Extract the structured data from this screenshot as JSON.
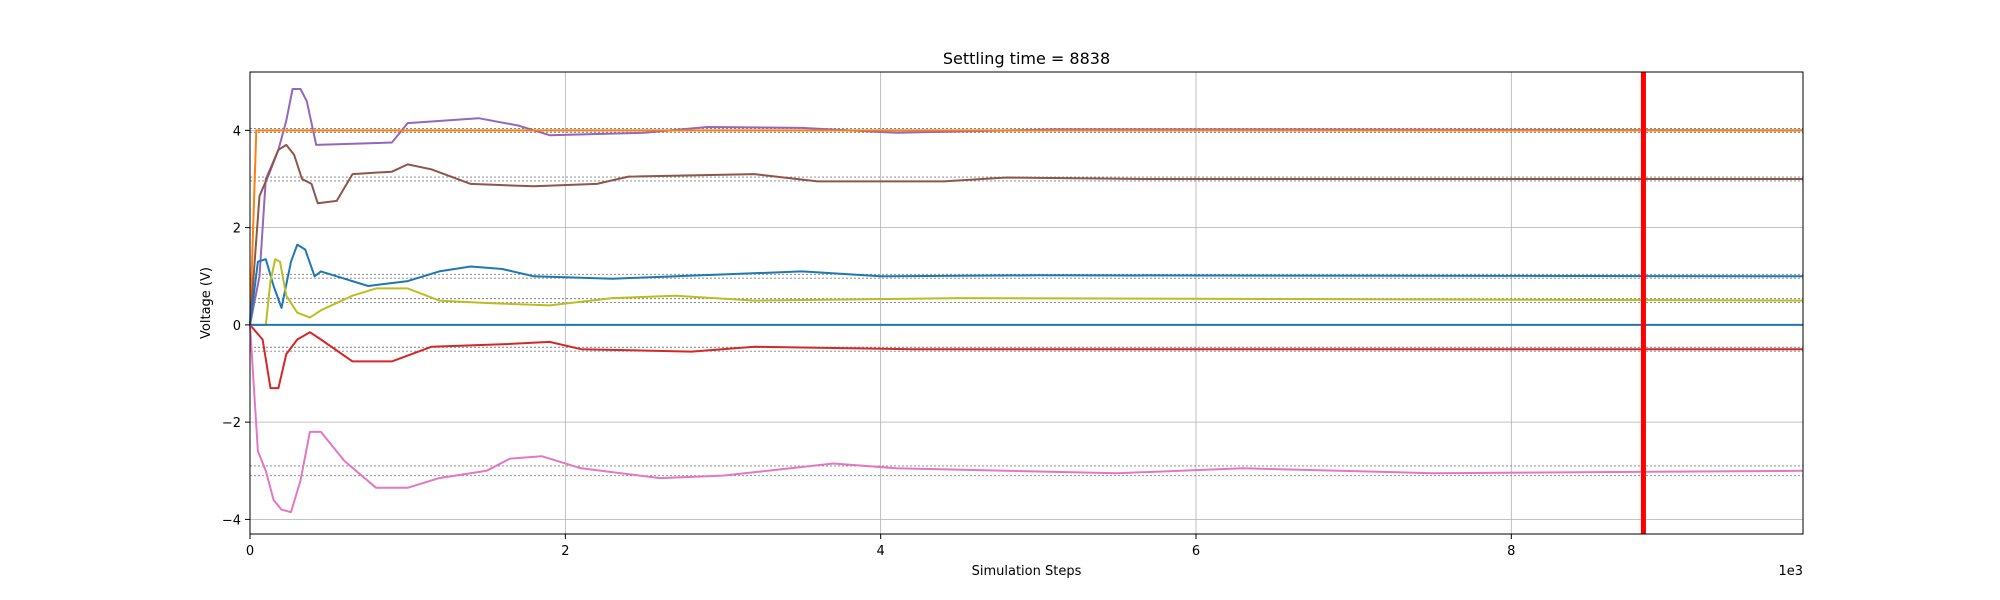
{
  "chart_data": {
    "type": "line",
    "title": "Settling time = 8838",
    "xlabel": "Simulation Steps",
    "ylabel": "Voltage (V)",
    "x_offset_text": "1e3",
    "xlim": [
      0,
      9850
    ],
    "ylim": [
      -4.3,
      5.2
    ],
    "x_scale_factor": 1000,
    "xticks": [
      0,
      2000,
      4000,
      6000,
      8000
    ],
    "yticks": [
      -4,
      -2,
      0,
      2,
      4
    ],
    "grid": true,
    "settling_marker": {
      "x": 8838,
      "color": "#ff0000"
    },
    "series": [
      {
        "color": "#9467bd",
        "target": 4.0,
        "band": 0.04,
        "points": [
          [
            0,
            0
          ],
          [
            60,
            1.0
          ],
          [
            100,
            3.0
          ],
          [
            180,
            3.6
          ],
          [
            230,
            4.2
          ],
          [
            270,
            4.85
          ],
          [
            320,
            4.85
          ],
          [
            360,
            4.6
          ],
          [
            420,
            3.7
          ],
          [
            900,
            3.75
          ],
          [
            1000,
            4.15
          ],
          [
            1450,
            4.25
          ],
          [
            1700,
            4.1
          ],
          [
            1900,
            3.9
          ],
          [
            2500,
            3.95
          ],
          [
            2900,
            4.07
          ],
          [
            3500,
            4.05
          ],
          [
            4100,
            3.95
          ],
          [
            5100,
            4.02
          ],
          [
            6500,
            4.02
          ],
          [
            9850,
            4.0
          ]
        ]
      },
      {
        "color": "#ff7f0e",
        "target": 4.0,
        "band": 0.04,
        "points": [
          [
            0,
            0
          ],
          [
            40,
            4.0
          ],
          [
            9850,
            4.0
          ]
        ]
      },
      {
        "color": "#8c564b",
        "target": 3.0,
        "band": 0.04,
        "points": [
          [
            0,
            0
          ],
          [
            60,
            2.65
          ],
          [
            120,
            3.1
          ],
          [
            180,
            3.6
          ],
          [
            230,
            3.7
          ],
          [
            280,
            3.5
          ],
          [
            330,
            3.0
          ],
          [
            390,
            2.9
          ],
          [
            430,
            2.5
          ],
          [
            550,
            2.55
          ],
          [
            650,
            3.1
          ],
          [
            900,
            3.15
          ],
          [
            1000,
            3.3
          ],
          [
            1150,
            3.2
          ],
          [
            1400,
            2.9
          ],
          [
            1800,
            2.85
          ],
          [
            2200,
            2.9
          ],
          [
            2400,
            3.05
          ],
          [
            3200,
            3.1
          ],
          [
            3600,
            2.95
          ],
          [
            4400,
            2.95
          ],
          [
            4800,
            3.03
          ],
          [
            5700,
            3.0
          ],
          [
            9850,
            3.0
          ]
        ]
      },
      {
        "color": "#1f77b4",
        "target": 1.0,
        "band": 0.04,
        "points": [
          [
            0,
            0
          ],
          [
            50,
            1.3
          ],
          [
            100,
            1.35
          ],
          [
            150,
            0.8
          ],
          [
            200,
            0.35
          ],
          [
            260,
            1.3
          ],
          [
            300,
            1.65
          ],
          [
            350,
            1.55
          ],
          [
            410,
            1.0
          ],
          [
            450,
            1.1
          ],
          [
            550,
            1.0
          ],
          [
            750,
            0.8
          ],
          [
            1000,
            0.9
          ],
          [
            1200,
            1.1
          ],
          [
            1400,
            1.2
          ],
          [
            1600,
            1.15
          ],
          [
            1800,
            1.0
          ],
          [
            2300,
            0.95
          ],
          [
            2700,
            1.0
          ],
          [
            3500,
            1.1
          ],
          [
            4000,
            1.0
          ],
          [
            5000,
            1.02
          ],
          [
            9850,
            1.0
          ]
        ]
      },
      {
        "color": "#bcbd22",
        "target": 0.5,
        "band": 0.04,
        "points": [
          [
            0,
            0
          ],
          [
            100,
            0.0
          ],
          [
            130,
            0.9
          ],
          [
            160,
            1.35
          ],
          [
            190,
            1.3
          ],
          [
            230,
            0.6
          ],
          [
            300,
            0.25
          ],
          [
            380,
            0.15
          ],
          [
            450,
            0.3
          ],
          [
            650,
            0.6
          ],
          [
            800,
            0.75
          ],
          [
            1000,
            0.75
          ],
          [
            1200,
            0.5
          ],
          [
            1500,
            0.45
          ],
          [
            1900,
            0.4
          ],
          [
            2300,
            0.55
          ],
          [
            2700,
            0.6
          ],
          [
            3200,
            0.5
          ],
          [
            4500,
            0.55
          ],
          [
            9850,
            0.5
          ]
        ]
      },
      {
        "color": "#1f77b4",
        "target": 0.0,
        "band": 0.0,
        "points": [
          [
            0,
            0
          ],
          [
            9850,
            0
          ]
        ]
      },
      {
        "color": "#d62728",
        "target": -0.5,
        "band": 0.04,
        "points": [
          [
            0,
            0
          ],
          [
            80,
            -0.3
          ],
          [
            130,
            -1.3
          ],
          [
            180,
            -1.3
          ],
          [
            230,
            -0.6
          ],
          [
            300,
            -0.3
          ],
          [
            380,
            -0.15
          ],
          [
            450,
            -0.3
          ],
          [
            650,
            -0.75
          ],
          [
            900,
            -0.75
          ],
          [
            1150,
            -0.45
          ],
          [
            1600,
            -0.4
          ],
          [
            1900,
            -0.35
          ],
          [
            2100,
            -0.5
          ],
          [
            2800,
            -0.55
          ],
          [
            3200,
            -0.45
          ],
          [
            4200,
            -0.5
          ],
          [
            5500,
            -0.5
          ],
          [
            9850,
            -0.5
          ]
        ]
      },
      {
        "color": "#e377c2",
        "target": -3.0,
        "band": 0.1,
        "points": [
          [
            0,
            0
          ],
          [
            50,
            -2.6
          ],
          [
            100,
            -3.0
          ],
          [
            150,
            -3.6
          ],
          [
            200,
            -3.8
          ],
          [
            260,
            -3.85
          ],
          [
            320,
            -3.2
          ],
          [
            380,
            -2.2
          ],
          [
            450,
            -2.2
          ],
          [
            600,
            -2.8
          ],
          [
            800,
            -3.35
          ],
          [
            1000,
            -3.35
          ],
          [
            1200,
            -3.15
          ],
          [
            1500,
            -3.0
          ],
          [
            1650,
            -2.75
          ],
          [
            1850,
            -2.7
          ],
          [
            2100,
            -2.95
          ],
          [
            2600,
            -3.15
          ],
          [
            3000,
            -3.1
          ],
          [
            3700,
            -2.85
          ],
          [
            4100,
            -2.95
          ],
          [
            5500,
            -3.05
          ],
          [
            6300,
            -2.95
          ],
          [
            7500,
            -3.05
          ],
          [
            9850,
            -3.0
          ]
        ]
      }
    ]
  }
}
